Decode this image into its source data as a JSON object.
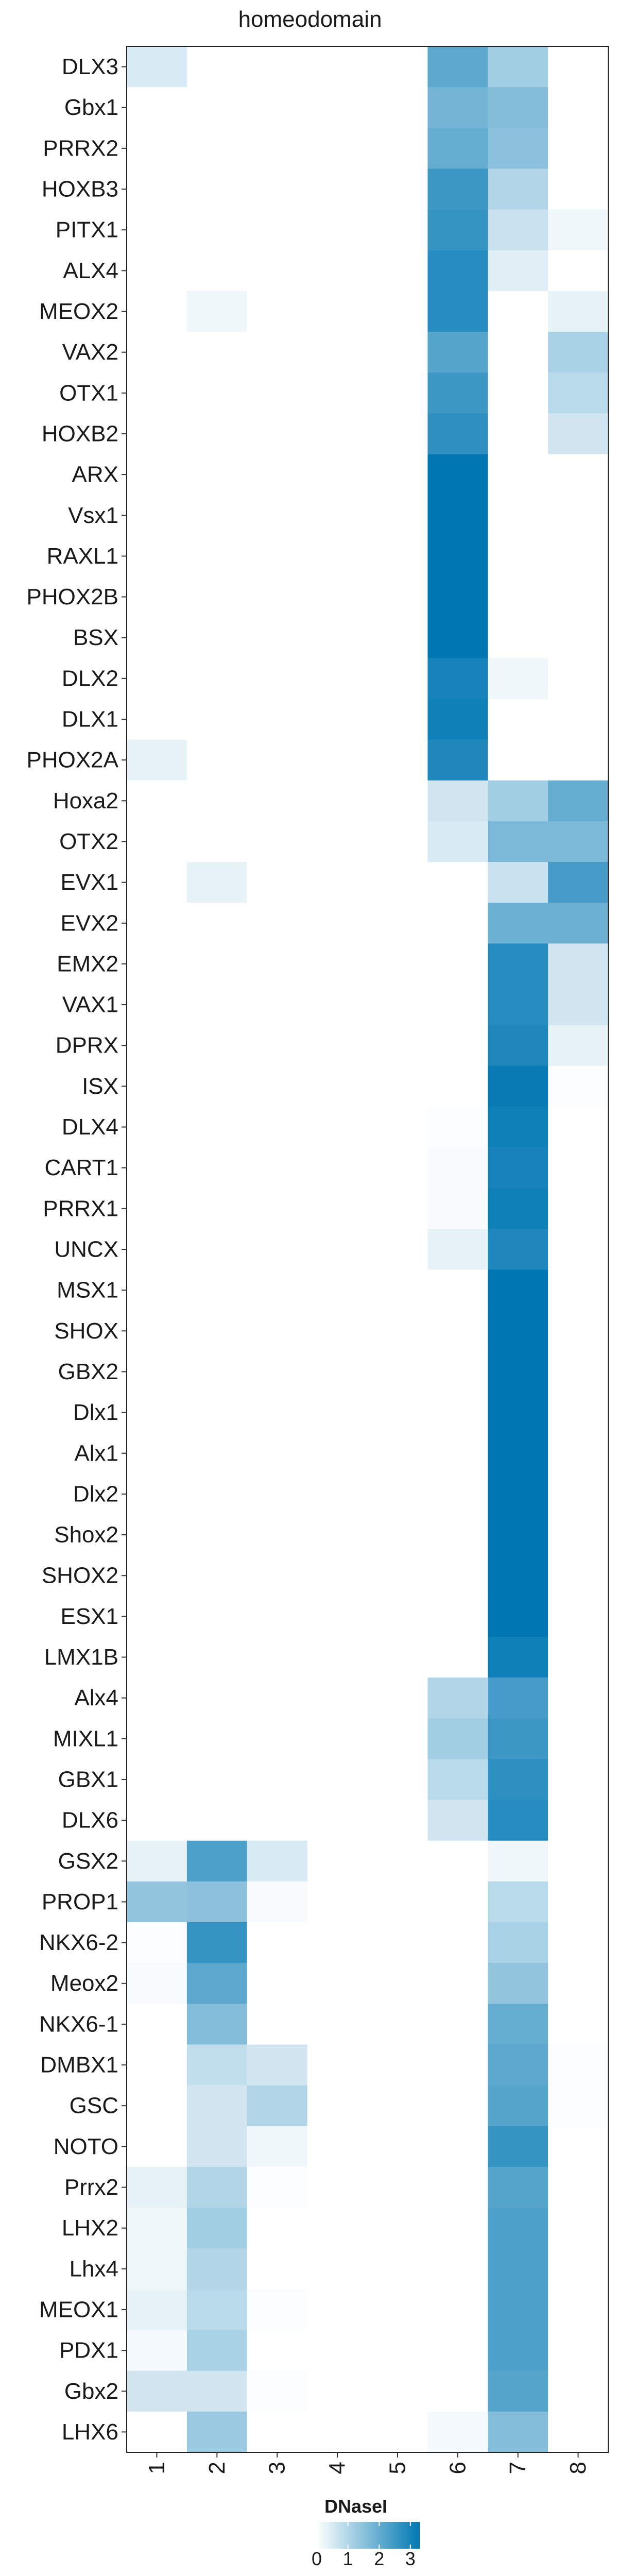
{
  "chart_data": {
    "type": "heatmap",
    "title": "homeodomain",
    "xlabel": "",
    "ylabel": "",
    "columns": [
      "1",
      "2",
      "3",
      "4",
      "5",
      "6",
      "7",
      "8"
    ],
    "rows": [
      "DLX3",
      "Gbx1",
      "PRRX2",
      "HOXB3",
      "PITX1",
      "ALX4",
      "MEOX2",
      "VAX2",
      "OTX1",
      "HOXB2",
      "ARX",
      "Vsx1",
      "RAXL1",
      "PHOX2B",
      "BSX",
      "DLX2",
      "DLX1",
      "PHOX2A",
      "Hoxa2",
      "OTX2",
      "EVX1",
      "EVX2",
      "EMX2",
      "VAX1",
      "DPRX",
      "ISX",
      "DLX4",
      "CART1",
      "PRRX1",
      "UNCX",
      "MSX1",
      "SHOX",
      "GBX2",
      "Dlx1",
      "Alx1",
      "Dlx2",
      "Shox2",
      "SHOX2",
      "ESX1",
      "LMX1B",
      "Alx4",
      "MIXL1",
      "GBX1",
      "DLX6",
      "GSX2",
      "PROP1",
      "NKX6-2",
      "Meox2",
      "NKX6-1",
      "DMBX1",
      "GSC",
      "NOTO",
      "Prrx2",
      "LHX2",
      "Lhx4",
      "MEOX1",
      "PDX1",
      "Gbx2",
      "LHX6"
    ],
    "values": [
      [
        0.5,
        0,
        0,
        0,
        0,
        2.1,
        1.2,
        0
      ],
      [
        0,
        0,
        0,
        0,
        0,
        1.8,
        1.6,
        0
      ],
      [
        0,
        0,
        0,
        0,
        0,
        2.0,
        1.5,
        0
      ],
      [
        0,
        0,
        0,
        0,
        0,
        2.5,
        1.0,
        0
      ],
      [
        0,
        0,
        0,
        0,
        0,
        2.6,
        0.7,
        0.2
      ],
      [
        0,
        0,
        0,
        0,
        0,
        2.8,
        0.4,
        0
      ],
      [
        0,
        0.2,
        0,
        0,
        0,
        2.8,
        0,
        0.3
      ],
      [
        0,
        0,
        0,
        0,
        0,
        2.2,
        0,
        1.1
      ],
      [
        0,
        0,
        0,
        0,
        0,
        2.5,
        0,
        0.9
      ],
      [
        0,
        0,
        0,
        0,
        0,
        2.7,
        0,
        0.6
      ],
      [
        0,
        0,
        0,
        0,
        0,
        3.3,
        0,
        0
      ],
      [
        0,
        0,
        0,
        0,
        0,
        3.3,
        0,
        0
      ],
      [
        0,
        0,
        0,
        0,
        0,
        3.3,
        0,
        0
      ],
      [
        0,
        0,
        0,
        0,
        0,
        3.3,
        0,
        0
      ],
      [
        0,
        0,
        0,
        0,
        0,
        3.3,
        0,
        0
      ],
      [
        0,
        0,
        0,
        0,
        0,
        3.0,
        0.2,
        0
      ],
      [
        0,
        0,
        0,
        0,
        0,
        3.1,
        0,
        0
      ],
      [
        0.3,
        0,
        0,
        0,
        0,
        2.9,
        0,
        0
      ],
      [
        0,
        0,
        0,
        0,
        0,
        0.6,
        1.2,
        2.0
      ],
      [
        0,
        0,
        0,
        0,
        0,
        0.5,
        1.7,
        1.7
      ],
      [
        0,
        0.3,
        0,
        0,
        0,
        0,
        0.7,
        2.4
      ],
      [
        0,
        0,
        0,
        0,
        0,
        0,
        1.9,
        1.9
      ],
      [
        0,
        0,
        0,
        0,
        0,
        0,
        2.8,
        0.6
      ],
      [
        0,
        0,
        0,
        0,
        0,
        0,
        2.8,
        0.6
      ],
      [
        0,
        0,
        0,
        0,
        0,
        0,
        2.9,
        0.3
      ],
      [
        0,
        0,
        0,
        0,
        0,
        0,
        3.2,
        0.05
      ],
      [
        0,
        0,
        0,
        0,
        0,
        0.05,
        3.1,
        0
      ],
      [
        0,
        0,
        0,
        0,
        0,
        0.1,
        3.0,
        0
      ],
      [
        0,
        0,
        0,
        0,
        0,
        0.1,
        3.1,
        0
      ],
      [
        0,
        0,
        0,
        0,
        0,
        0.3,
        2.9,
        0
      ],
      [
        0,
        0,
        0,
        0,
        0,
        0,
        3.3,
        0
      ],
      [
        0,
        0,
        0,
        0,
        0,
        0,
        3.3,
        0
      ],
      [
        0,
        0,
        0,
        0,
        0,
        0,
        3.3,
        0
      ],
      [
        0,
        0,
        0,
        0,
        0,
        0,
        3.3,
        0
      ],
      [
        0,
        0,
        0,
        0,
        0,
        0,
        3.3,
        0
      ],
      [
        0,
        0,
        0,
        0,
        0,
        0,
        3.3,
        0
      ],
      [
        0,
        0,
        0,
        0,
        0,
        0,
        3.3,
        0
      ],
      [
        0,
        0,
        0,
        0,
        0,
        0,
        3.3,
        0
      ],
      [
        0,
        0,
        0,
        0,
        0,
        0,
        3.3,
        0
      ],
      [
        0,
        0,
        0,
        0,
        0,
        0,
        3.1,
        0
      ],
      [
        0,
        0,
        0,
        0,
        0,
        1.0,
        2.4,
        0
      ],
      [
        0,
        0,
        0,
        0,
        0,
        1.2,
        2.5,
        0
      ],
      [
        0,
        0,
        0,
        0,
        0,
        0.9,
        2.7,
        0
      ],
      [
        0,
        0,
        0,
        0,
        0,
        0.6,
        2.8,
        0
      ],
      [
        0.3,
        2.3,
        0.5,
        0,
        0,
        0,
        0.2,
        0
      ],
      [
        1.4,
        1.5,
        0.1,
        0,
        0,
        0,
        0.9,
        0
      ],
      [
        0.05,
        2.6,
        0,
        0,
        0,
        0,
        1.1,
        0
      ],
      [
        0.1,
        2.1,
        0,
        0,
        0,
        0,
        1.4,
        0
      ],
      [
        0,
        1.6,
        0,
        0,
        0,
        0,
        2.0,
        0
      ],
      [
        0,
        0.8,
        0.6,
        0,
        0,
        0,
        2.1,
        0.05
      ],
      [
        0,
        0.6,
        1.0,
        0,
        0,
        0,
        2.2,
        0.05
      ],
      [
        0,
        0.6,
        0.2,
        0,
        0,
        0,
        2.6,
        0
      ],
      [
        0.3,
        1.0,
        0.05,
        0,
        0,
        0,
        2.2,
        0
      ],
      [
        0.2,
        1.2,
        0,
        0,
        0,
        0,
        2.3,
        0
      ],
      [
        0.2,
        1.0,
        0,
        0,
        0,
        0,
        2.3,
        0
      ],
      [
        0.3,
        0.9,
        0.05,
        0,
        0,
        0,
        2.3,
        0
      ],
      [
        0.15,
        1.1,
        0,
        0,
        0,
        0,
        2.3,
        0
      ],
      [
        0.6,
        0.6,
        0.05,
        0,
        0,
        0,
        2.2,
        0
      ],
      [
        0,
        1.3,
        0,
        0,
        0,
        0.15,
        1.6,
        0
      ]
    ],
    "colorbar": {
      "label": "DNaseI",
      "ticks": [
        0,
        1,
        2,
        3
      ],
      "min": 0,
      "max": 3.3,
      "low_color": "#ffffff",
      "high_color": "#0077b3"
    },
    "grid": false,
    "legend_position": "bottom"
  }
}
